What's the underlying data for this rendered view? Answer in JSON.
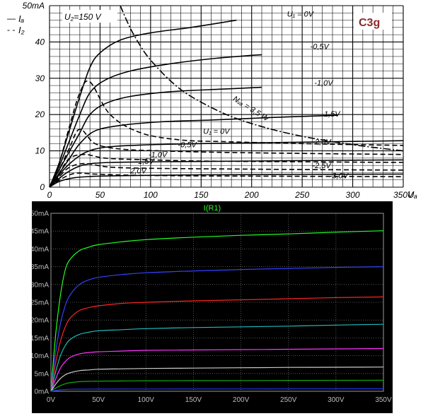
{
  "chart_data": [
    {
      "type": "line",
      "title": "",
      "tube_label": "C3g",
      "condition_label": "U₂=150 V",
      "legend": [
        {
          "name": "Iₐ",
          "style": "solid"
        },
        {
          "name": "I₂",
          "style": "dashed"
        }
      ],
      "xlabel": "Uₐ",
      "ylabel": "",
      "xlim": [
        0,
        350
      ],
      "ylim": [
        0,
        50
      ],
      "x_ticks": [
        "0",
        "50",
        "100",
        "150",
        "200",
        "250",
        "300",
        "350V"
      ],
      "y_ticks": [
        "0",
        "10",
        "20",
        "30",
        "40",
        "50mA"
      ],
      "grid": true,
      "series": [
        {
          "name": "U₁ = 0V",
          "kind": "anode",
          "x": [
            0,
            10,
            20,
            30,
            40,
            50,
            70,
            100,
            140,
            185
          ],
          "y": [
            0,
            7,
            16,
            25,
            33,
            37,
            40.5,
            42.5,
            44,
            46
          ]
        },
        {
          "name": "-0,5V",
          "kind": "anode",
          "x": [
            0,
            10,
            20,
            30,
            40,
            55,
            80,
            120,
            165,
            210
          ],
          "y": [
            0,
            6,
            13,
            20,
            26,
            29.5,
            32,
            34,
            35.5,
            36.5
          ]
        },
        {
          "name": "-1,0V",
          "kind": "anode",
          "x": [
            0,
            10,
            20,
            30,
            40,
            55,
            80,
            120,
            170,
            210
          ],
          "y": [
            0,
            5,
            10,
            15,
            20,
            23,
            25,
            26.3,
            27,
            27.5
          ]
        },
        {
          "name": "-1,5V",
          "kind": "anode",
          "x": [
            0,
            10,
            20,
            30,
            45,
            70,
            110,
            160,
            220,
            250,
            285
          ],
          "y": [
            0,
            4,
            8,
            12,
            15.5,
            17,
            18,
            18.5,
            19.2,
            19.5,
            19.8
          ]
        },
        {
          "name": "-2,0V",
          "kind": "anode",
          "x": [
            0,
            10,
            20,
            35,
            55,
            90,
            150,
            250,
            350
          ],
          "y": [
            0,
            3.5,
            6.5,
            9.5,
            11,
            11.6,
            12,
            12.4,
            12.8
          ]
        },
        {
          "name": "-2,5V",
          "kind": "anode",
          "x": [
            0,
            10,
            20,
            35,
            60,
            110,
            200,
            280,
            350
          ],
          "y": [
            0,
            2.5,
            4.5,
            6.2,
            6.8,
            7,
            7.2,
            7.4,
            7.5
          ]
        },
        {
          "name": "-3,0V",
          "kind": "anode",
          "x": [
            0,
            10,
            25,
            45,
            80,
            150,
            250,
            350
          ],
          "y": [
            0,
            1.6,
            2.6,
            3,
            3.2,
            3.4,
            3.5,
            3.6
          ]
        },
        {
          "name": "U₁ = 0V",
          "kind": "screen",
          "x": [
            0,
            10,
            20,
            30,
            40,
            60,
            90,
            130,
            180,
            250,
            350
          ],
          "y": [
            0,
            7,
            17,
            26,
            29,
            20,
            15,
            13,
            12.5,
            12,
            11.5
          ]
        },
        {
          "name": "-0,5V",
          "kind": "screen",
          "x": [
            0,
            10,
            20,
            30,
            45,
            70,
            110,
            170,
            250,
            350
          ],
          "y": [
            0,
            5,
            11,
            16,
            12,
            10.5,
            10,
            9.6,
            9.3,
            9
          ]
        },
        {
          "name": "-1,0V",
          "kind": "screen",
          "x": [
            0,
            10,
            20,
            35,
            55,
            90,
            150,
            250,
            350
          ],
          "y": [
            0,
            4,
            8,
            9,
            8,
            7.6,
            7.2,
            7,
            6.8
          ]
        },
        {
          "name": "-1,5V",
          "kind": "screen",
          "x": [
            0,
            10,
            20,
            35,
            60,
            100,
            180,
            280,
            350
          ],
          "y": [
            0,
            3,
            5.5,
            6.5,
            5.5,
            5.2,
            5,
            4.8,
            4.7
          ]
        },
        {
          "name": "2,0V",
          "kind": "screen",
          "x": [
            0,
            10,
            25,
            45,
            80,
            150,
            250,
            350
          ],
          "y": [
            0,
            2,
            3.8,
            3.6,
            3.3,
            3.1,
            3,
            2.9
          ]
        }
      ],
      "load_line": {
        "name": "Nᵥₐ = 3,5 W",
        "x": [
          70,
          80,
          90,
          100,
          120,
          140,
          175,
          210,
          250,
          300,
          350
        ],
        "y": [
          50,
          43.75,
          38.9,
          35,
          29.2,
          25,
          20,
          16.7,
          14,
          11.7,
          10
        ]
      },
      "series_labels": [
        "U₁ = 0V",
        "-0,5V",
        "-1,0V",
        "-1,5V",
        "-2,0V",
        "-2,5V",
        "-3,0V",
        "U₁ = 0V",
        "-0,5V",
        "-1,0V",
        "-1,5V",
        "2,0V"
      ]
    },
    {
      "type": "line",
      "title": "I(R1)",
      "xlabel": "",
      "ylabel": "",
      "xlim": [
        0,
        350
      ],
      "ylim": [
        0,
        50
      ],
      "x_ticks": [
        "0V",
        "50V",
        "100V",
        "150V",
        "200V",
        "250V",
        "300V",
        "350V"
      ],
      "y_ticks": [
        "0mA",
        "5mA",
        "10mA",
        "15mA",
        "20mA",
        "25mA",
        "30mA",
        "35mA",
        "40mA",
        "45mA",
        "50mA"
      ],
      "grid": true,
      "series": [
        {
          "color": "#22ff22",
          "x": [
            0,
            5,
            10,
            15,
            20,
            30,
            40,
            50,
            75,
            100,
            150,
            200,
            250,
            300,
            350
          ],
          "y": [
            0,
            16,
            27,
            34,
            37,
            39.5,
            40.5,
            41.2,
            42,
            42.6,
            43.3,
            43.8,
            44.2,
            44.7,
            45.1
          ]
        },
        {
          "color": "#3344ff",
          "x": [
            0,
            5,
            10,
            15,
            20,
            30,
            40,
            50,
            75,
            100,
            150,
            200,
            250,
            300,
            350
          ],
          "y": [
            0,
            11,
            19,
            24,
            27,
            30,
            31.3,
            32,
            32.8,
            33.3,
            33.8,
            34.2,
            34.5,
            34.8,
            35
          ]
        },
        {
          "color": "#ff2222",
          "x": [
            0,
            5,
            10,
            15,
            20,
            30,
            40,
            50,
            75,
            100,
            150,
            200,
            250,
            300,
            350
          ],
          "y": [
            0,
            8,
            14,
            18,
            20.5,
            22.7,
            23.5,
            24,
            24.7,
            25,
            25.4,
            25.7,
            26,
            26.3,
            26.5
          ]
        },
        {
          "color": "#22bbbb",
          "x": [
            0,
            5,
            10,
            15,
            20,
            30,
            40,
            50,
            75,
            100,
            150,
            200,
            250,
            300,
            350
          ],
          "y": [
            0,
            5.5,
            10,
            12.8,
            14.5,
            16,
            16.6,
            17,
            17.3,
            17.6,
            17.9,
            18.1,
            18.3,
            18.6,
            18.8
          ]
        },
        {
          "color": "#ff33ff",
          "x": [
            0,
            5,
            10,
            15,
            20,
            30,
            40,
            50,
            75,
            100,
            150,
            200,
            250,
            300,
            350
          ],
          "y": [
            0,
            3.5,
            6.5,
            8.3,
            9.5,
            10.5,
            10.9,
            11.1,
            11.3,
            11.5,
            11.6,
            11.7,
            11.8,
            11.9,
            12
          ]
        },
        {
          "color": "#cccccc",
          "x": [
            0,
            5,
            10,
            15,
            20,
            30,
            40,
            50,
            75,
            100,
            150,
            200,
            250,
            300,
            350
          ],
          "y": [
            0,
            2,
            3.6,
            4.6,
            5.2,
            5.8,
            6,
            6.2,
            6.3,
            6.4,
            6.5,
            6.6,
            6.7,
            6.75,
            6.8
          ]
        },
        {
          "color": "#11aa11",
          "x": [
            0,
            5,
            10,
            15,
            20,
            30,
            40,
            50,
            75,
            100,
            150,
            200,
            250,
            300,
            350
          ],
          "y": [
            0,
            0.9,
            1.6,
            2.1,
            2.4,
            2.7,
            2.8,
            2.85,
            2.9,
            2.95,
            3,
            3.02,
            3.05,
            3.07,
            3.1
          ]
        },
        {
          "color": "#2233ee",
          "x": [
            0,
            5,
            10,
            15,
            20,
            30,
            50,
            100,
            200,
            350
          ],
          "y": [
            0,
            0.2,
            0.4,
            0.5,
            0.55,
            0.6,
            0.62,
            0.64,
            0.66,
            0.7
          ]
        }
      ]
    }
  ]
}
